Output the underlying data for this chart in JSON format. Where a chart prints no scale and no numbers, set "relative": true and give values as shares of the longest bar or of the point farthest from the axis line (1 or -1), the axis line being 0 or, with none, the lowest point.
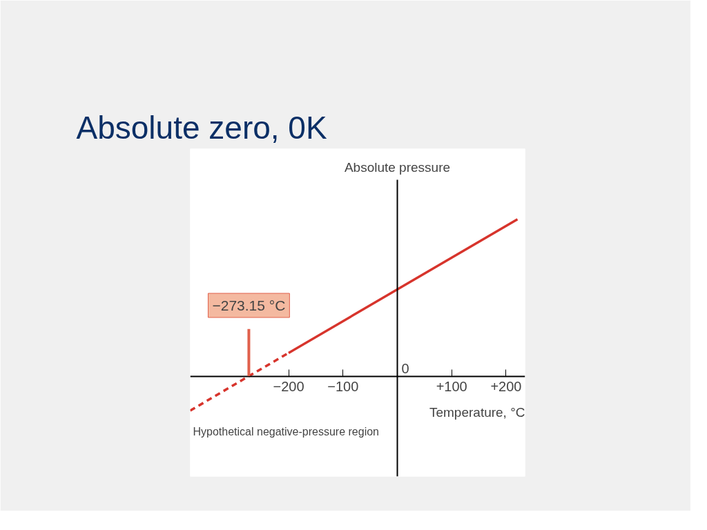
{
  "chart_data": {
    "type": "line",
    "title": "Absolute zero, 0K",
    "xlabel": "Temperature, °C",
    "ylabel": "Absolute pressure",
    "relative": true,
    "xlim": [
      -381,
      235
    ],
    "xticks": [
      {
        "value": -200,
        "label": "−200"
      },
      {
        "value": -100,
        "label": "−100"
      },
      {
        "value": 100,
        "label": "+100"
      },
      {
        "value": 200,
        "label": "+200"
      }
    ],
    "series": [
      {
        "color": "#d7342c",
        "line_style": "dashed",
        "x": [
          -381,
          -273.15,
          -200
        ],
        "values": [
          -0.22,
          0,
          0.148
        ]
      },
      {
        "color": "#d7342c",
        "line_style": "solid",
        "x": [
          -200,
          221
        ],
        "values": [
          0.148,
          1
        ]
      }
    ],
    "annotations": [
      {
        "text": "−273.15 °C",
        "x": -273.15,
        "y": 0
      },
      "0",
      "Hypothetical negative-pressure region"
    ],
    "grid": false
  }
}
